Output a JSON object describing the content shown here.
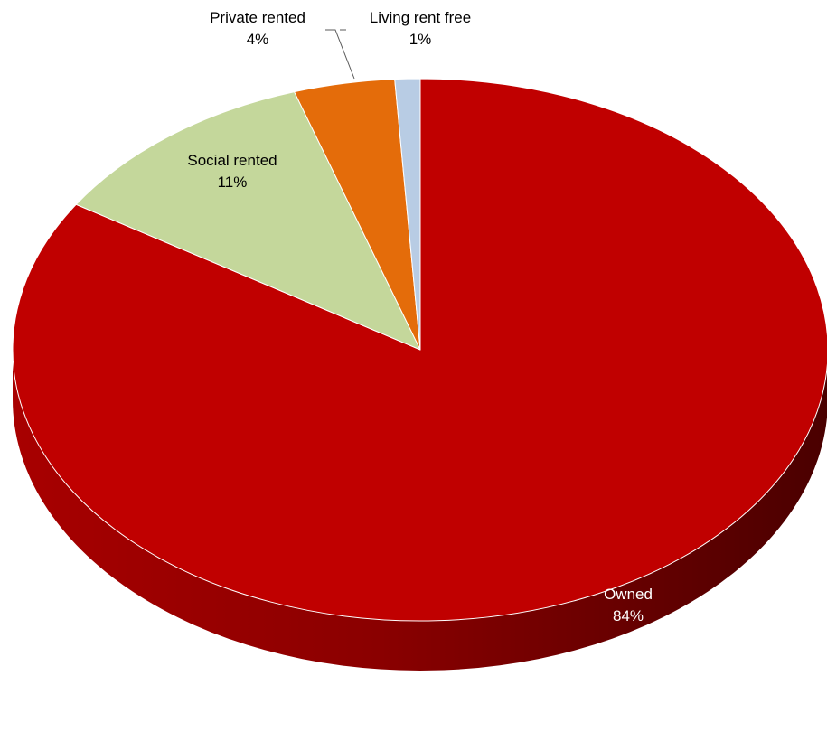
{
  "chart_data": {
    "type": "pie",
    "style": "3d",
    "title": "",
    "start_angle_deg": 0,
    "direction": "clockwise",
    "slices": [
      {
        "label": "Owned",
        "value": 84,
        "value_label": "84%",
        "color": "#C00000",
        "label_color": "#FFFFFF"
      },
      {
        "label": "Social rented",
        "value": 11,
        "value_label": "11%",
        "color": "#C4D79B",
        "label_color": "#000000"
      },
      {
        "label": "Private rented",
        "value": 4,
        "value_label": "4%",
        "color": "#E46C0A",
        "label_color": "#000000"
      },
      {
        "label": "Living rent free",
        "value": 1,
        "value_label": "1%",
        "color": "#B8CCE4",
        "label_color": "#000000"
      }
    ]
  }
}
